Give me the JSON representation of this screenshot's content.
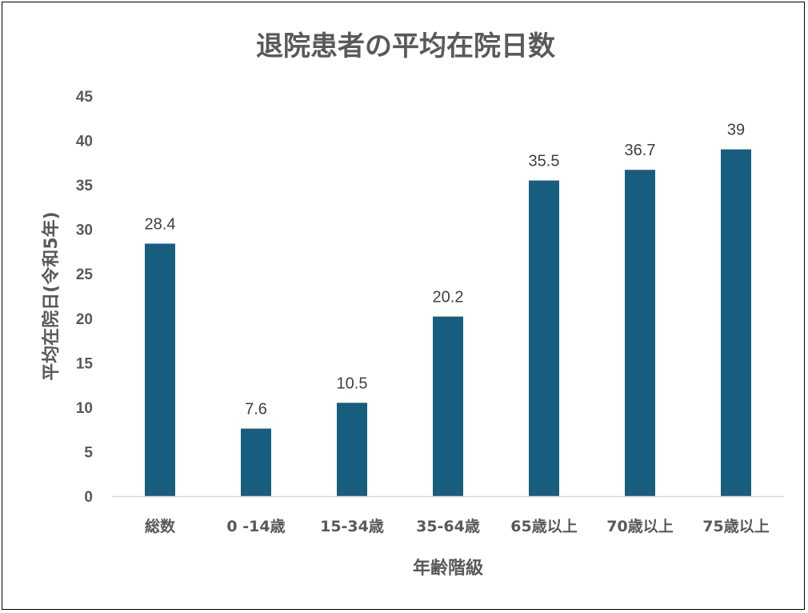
{
  "chart_data": {
    "type": "bar",
    "title": "退院患者の平均在院日数",
    "xlabel": "年齢階級",
    "ylabel": "平均在院日(令和5年)",
    "categories": [
      "総数",
      "0 -14歳",
      "15-34歳",
      "35-64歳",
      "65歳以上",
      "70歳以上",
      "75歳以上"
    ],
    "values": [
      28.4,
      7.6,
      10.5,
      20.2,
      35.5,
      36.7,
      39
    ],
    "data_labels": [
      "28.4",
      "7.6",
      "10.5",
      "20.2",
      "35.5",
      "36.7",
      "39"
    ],
    "ylim": [
      0,
      45
    ],
    "yticks": [
      "0",
      "5",
      "10",
      "15",
      "20",
      "25",
      "30",
      "35",
      "40",
      "45"
    ],
    "grid": false,
    "legend": "none",
    "bar_color": "#175E7E"
  }
}
